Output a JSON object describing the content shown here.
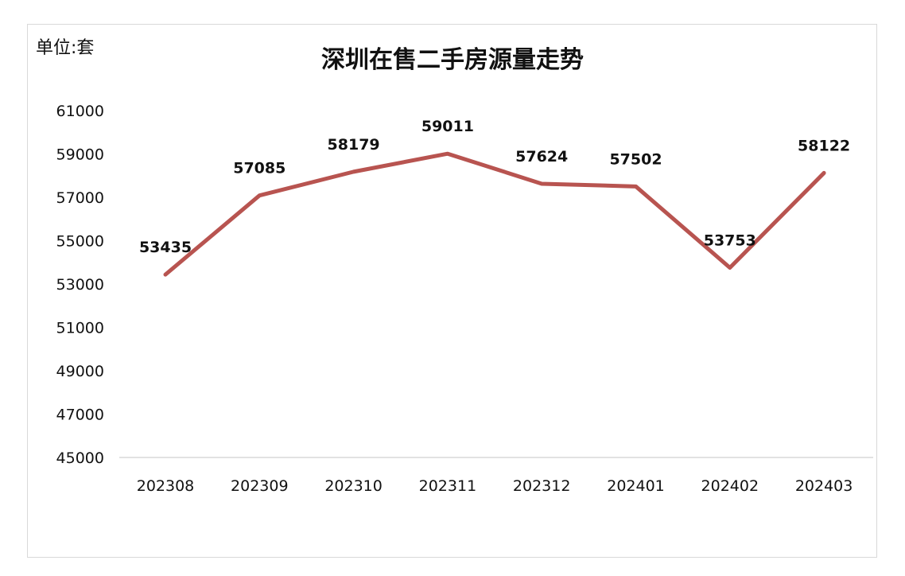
{
  "unit_label": "单位:套",
  "chart_data": {
    "type": "line",
    "title": "深圳在售二手房源量走势",
    "xlabel": "",
    "ylabel": "",
    "categories": [
      "202308",
      "202309",
      "202310",
      "202311",
      "202312",
      "202401",
      "202402",
      "202403"
    ],
    "series": [
      {
        "values": [
          53435,
          57085,
          58179,
          59011,
          57624,
          57502,
          53753,
          58122
        ],
        "color": "#b85450"
      }
    ],
    "ylim": [
      45000,
      61000
    ],
    "yticks": [
      45000,
      47000,
      49000,
      51000,
      53000,
      55000,
      57000,
      59000,
      61000
    ],
    "data_labels": [
      "53435",
      "57085",
      "58179",
      "59011",
      "57624",
      "57502",
      "53753",
      "58122"
    ],
    "grid": false,
    "legend": "none"
  }
}
